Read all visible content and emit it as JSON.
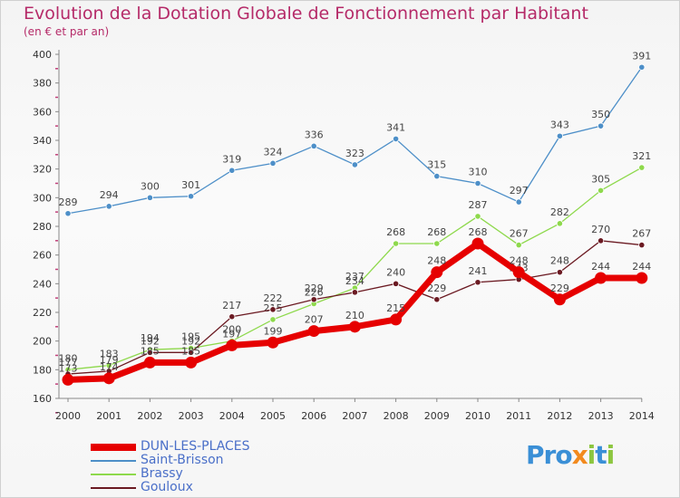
{
  "title": "Evolution de la Dotation Globale de Fonctionnement par Habitant",
  "subtitle": "(en € et par an)",
  "brand": {
    "text": "Proxiti",
    "letters": [
      "P",
      "r",
      "o",
      "x",
      "i",
      "t",
      "i"
    ],
    "colors": [
      "#3a8fd6",
      "#3a8fd6",
      "#3a8fd6",
      "#f28a1e",
      "#8cc63f",
      "#3a8fd6",
      "#8cc63f"
    ]
  },
  "chart_data": {
    "type": "line",
    "categories": [
      "2000",
      "2001",
      "2002",
      "2003",
      "2004",
      "2005",
      "2006",
      "2007",
      "2008",
      "2009",
      "2010",
      "2011",
      "2012",
      "2013",
      "2014"
    ],
    "ylim": [
      160,
      400
    ],
    "yticks": [
      160,
      180,
      200,
      220,
      240,
      260,
      280,
      300,
      320,
      340,
      360,
      380,
      400
    ],
    "grid": false,
    "legend_position": "bottom-left",
    "series": [
      {
        "name": "Saint-Brisson",
        "color": "#4d8fc8",
        "values": [
          289,
          294,
          300,
          301,
          319,
          324,
          336,
          323,
          341,
          315,
          310,
          297,
          343,
          350,
          391
        ]
      },
      {
        "name": "Brassy",
        "color": "#8ed94c",
        "values": [
          180,
          183,
          194,
          195,
          200,
          215,
          226,
          237,
          268,
          268,
          287,
          267,
          282,
          305,
          321
        ]
      },
      {
        "name": "Gouloux",
        "color": "#6b1a22",
        "values": [
          177,
          179,
          192,
          192,
          217,
          222,
          229,
          234,
          240,
          229,
          241,
          243,
          248,
          270,
          267
        ]
      },
      {
        "name": "DUN-LES-PLACES",
        "color": "#e60000",
        "values": [
          173,
          174,
          185,
          185,
          197,
          199,
          207,
          210,
          215,
          248,
          268,
          248,
          229,
          244,
          244
        ]
      }
    ],
    "legend_order": [
      "DUN-LES-PLACES",
      "Saint-Brisson",
      "Brassy",
      "Gouloux"
    ]
  }
}
